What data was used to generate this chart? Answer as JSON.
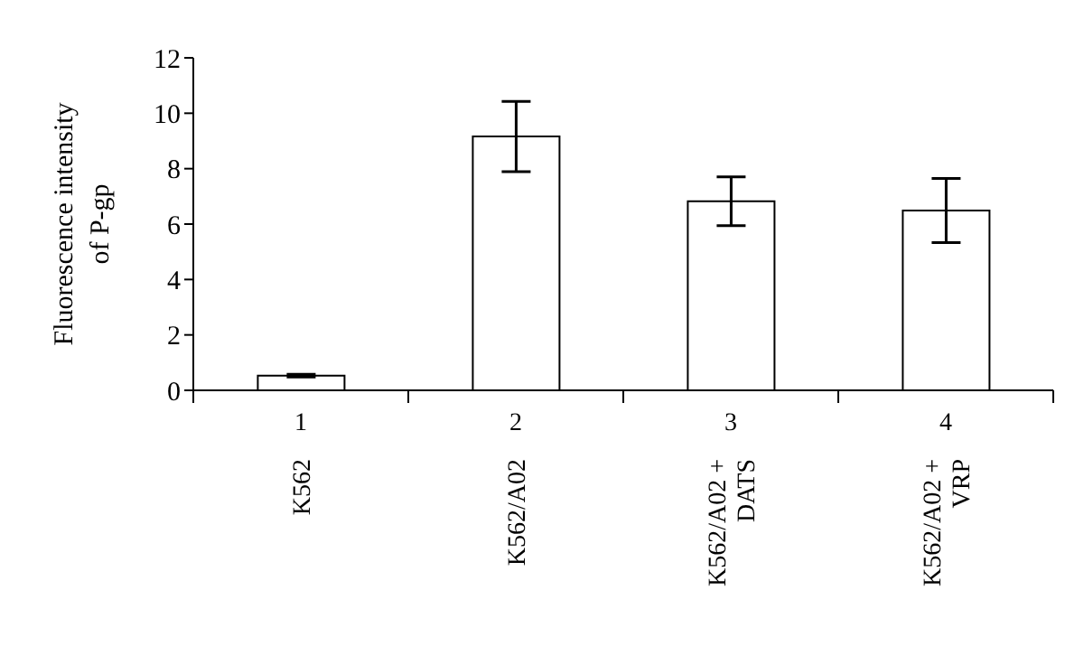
{
  "chart_data": {
    "type": "bar",
    "ylabel": "Fluorescence intensity of P-gp",
    "categories": [
      "1",
      "2",
      "3",
      "4"
    ],
    "values": [
      0.53,
      9.16,
      6.82,
      6.49
    ],
    "errors": [
      0.05,
      1.27,
      0.88,
      1.16
    ],
    "color": "#ffffff",
    "annotations": [
      "K562",
      "K562/A02",
      "K562/A02 + DATS",
      "K562/A02 + VRP"
    ],
    "ylim": [
      0,
      12
    ],
    "yticks": [
      0,
      2,
      4,
      6,
      8,
      10,
      12
    ],
    "grid": false,
    "legend": false
  }
}
